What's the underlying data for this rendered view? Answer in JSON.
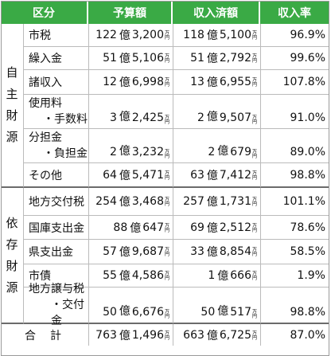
{
  "header": {
    "category": "区分",
    "budget": "予算額",
    "received": "収入済額",
    "rate": "収入率"
  },
  "groups": {
    "own": [
      "自",
      "主",
      "財",
      "源"
    ],
    "dependent": [
      "依",
      "存",
      "財",
      "源"
    ]
  },
  "units": {
    "oku": "億",
    "man1": "万",
    "man2": "円"
  },
  "own_rows": [
    {
      "name": "市税",
      "budget_oku": "122",
      "budget_man": "3,200",
      "received_oku": "118",
      "received_man": "5,100",
      "rate": "96.9%"
    },
    {
      "name": "繰入金",
      "budget_oku": "51",
      "budget_man": "5,106",
      "received_oku": "51",
      "received_man": "2,792",
      "rate": "99.6%"
    },
    {
      "name": "諸収入",
      "budget_oku": "12",
      "budget_man": "6,998",
      "received_oku": "13",
      "received_man": "6,955",
      "rate": "107.8%"
    },
    {
      "name": "使用料",
      "name2": "・手数料",
      "budget_oku": "3",
      "budget_man": "2,425",
      "received_oku": "2",
      "received_man": "9,507",
      "rate": "91.0%"
    },
    {
      "name": "分担金",
      "name2": "・負担金",
      "budget_oku": "2",
      "budget_man": "3,232",
      "received_oku": "2",
      "received_man": "679",
      "rate": "89.0%"
    },
    {
      "name": "その他",
      "budget_oku": "64",
      "budget_man": "5,471",
      "received_oku": "63",
      "received_man": "7,412",
      "rate": "98.8%"
    }
  ],
  "dep_rows": [
    {
      "name": "地方交付税",
      "budget_oku": "254",
      "budget_man": "3,468",
      "received_oku": "257",
      "received_man": "1,731",
      "rate": "101.1%"
    },
    {
      "name": "国庫支出金",
      "budget_oku": "88",
      "budget_man": "647",
      "received_oku": "69",
      "received_man": "2,512",
      "rate": "78.6%"
    },
    {
      "name": "県支出金",
      "budget_oku": "57",
      "budget_man": "9,687",
      "received_oku": "33",
      "received_man": "8,854",
      "rate": "58.5%"
    },
    {
      "name": "市債",
      "budget_oku": "55",
      "budget_man": "4,586",
      "received_oku": "1",
      "received_man": "666",
      "rate": "1.9%"
    },
    {
      "name": "地方譲与税",
      "name2": "・交付金",
      "budget_oku": "50",
      "budget_man": "6,676",
      "received_oku": "50",
      "received_man": "517",
      "rate": "98.8%"
    }
  ],
  "total": {
    "label": "合計",
    "budget_oku": "763",
    "budget_man": "1,496",
    "received_oku": "663",
    "received_man": "6,725",
    "rate": "87.0%"
  }
}
